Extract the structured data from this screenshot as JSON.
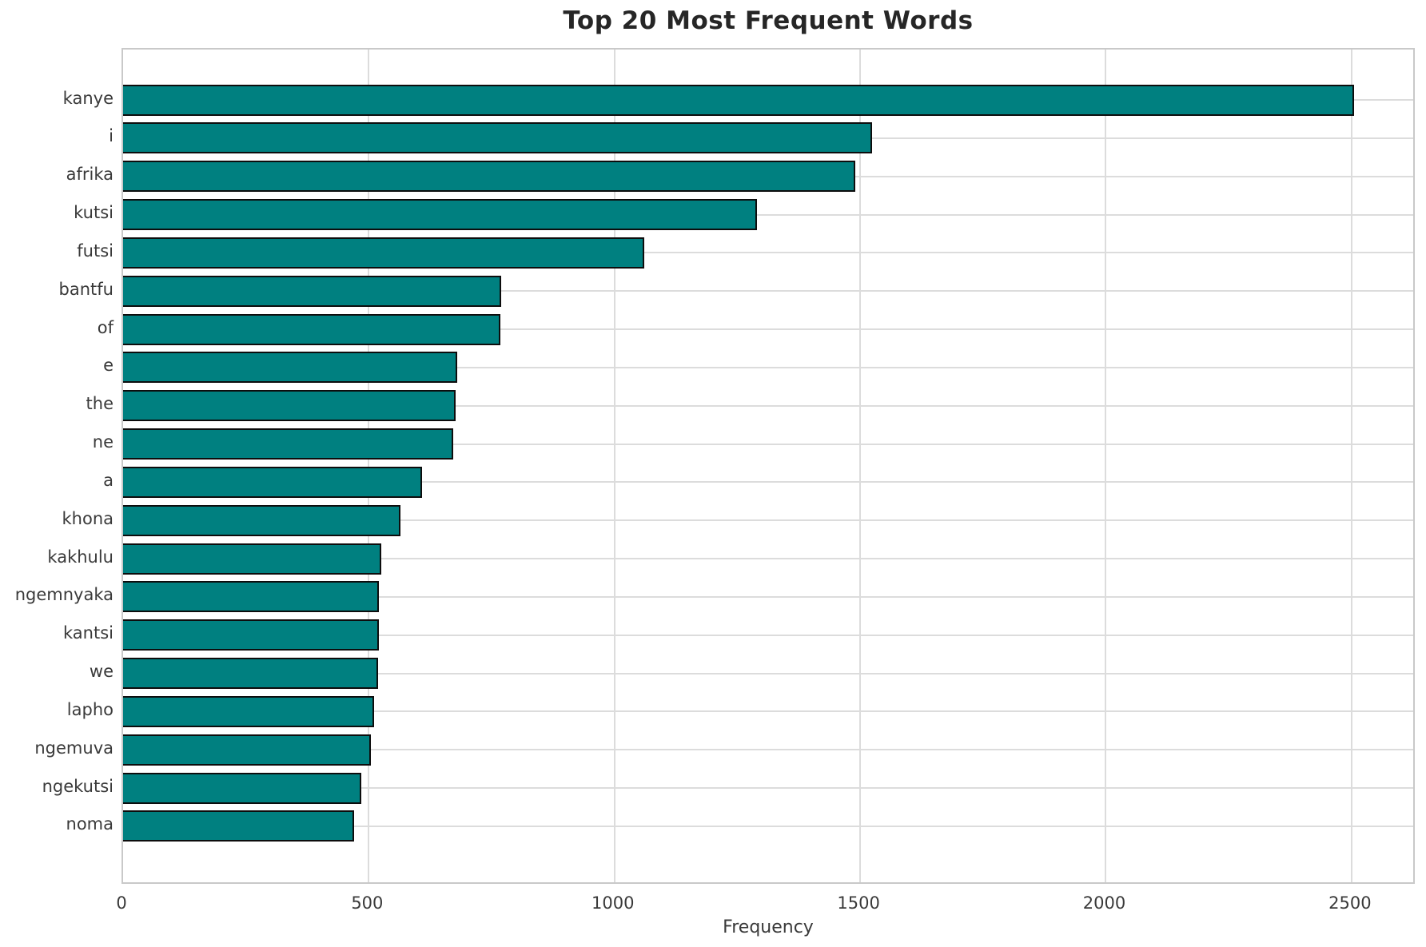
{
  "title": "Top 20 Most Frequent Words",
  "colors": {
    "bar_fill": "#008080",
    "bar_edge": "#0d0d0d",
    "grid": "#dcdcdc",
    "spine": "#c9c9c9",
    "title_text": "#262626",
    "tick_text": "#3a3a3a",
    "background": "#ffffff"
  },
  "chart_data": {
    "type": "bar",
    "orientation": "horizontal",
    "title": "Top 20 Most Frequent Words",
    "xlabel": "Frequency",
    "ylabel": "",
    "grid": true,
    "legend": false,
    "xlim": [
      0,
      2632
    ],
    "xticks": [
      0,
      500,
      1000,
      1500,
      2000,
      2500
    ],
    "categories": [
      "kanye",
      "i",
      "afrika",
      "kutsi",
      "futsi",
      "bantfu",
      "of",
      "e",
      "the",
      "ne",
      "a",
      "khona",
      "kakhulu",
      "ngemnyaka",
      "kantsi",
      "we",
      "lapho",
      "ngemuva",
      "ngekutsi",
      "noma"
    ],
    "values": [
      2505,
      1525,
      1490,
      1290,
      1060,
      770,
      768,
      680,
      676,
      672,
      608,
      565,
      525,
      521,
      520,
      519,
      510,
      505,
      484,
      470
    ]
  }
}
